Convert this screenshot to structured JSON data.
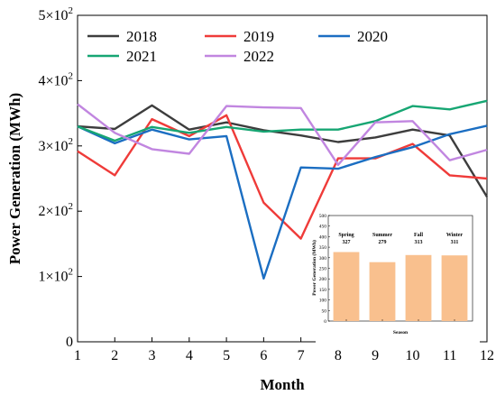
{
  "chart_data": [
    {
      "type": "line",
      "title": "",
      "xlabel": "Month",
      "ylabel": "Power Generation (MWh)",
      "x": [
        1,
        2,
        3,
        4,
        5,
        6,
        7,
        8,
        9,
        10,
        11,
        12
      ],
      "xticks": [
        "1",
        "2",
        "3",
        "4",
        "5",
        "6",
        "7",
        "8",
        "9",
        "10",
        "11",
        "12"
      ],
      "xlim": [
        1,
        12
      ],
      "ylim": [
        0,
        500
      ],
      "yticks": [
        {
          "value": 0,
          "label": "0",
          "exp": ""
        },
        {
          "value": 100,
          "label": "1×10",
          "exp": "2"
        },
        {
          "value": 200,
          "label": "2×10",
          "exp": "2"
        },
        {
          "value": 300,
          "label": "3×10",
          "exp": "2"
        },
        {
          "value": 400,
          "label": "4×10",
          "exp": "2"
        },
        {
          "value": 500,
          "label": "5×10",
          "exp": "2"
        }
      ],
      "legend_position": "top-left",
      "grid": false,
      "series": [
        {
          "name": "2018",
          "color": "#3d3d3d",
          "values": [
            330,
            326,
            362,
            325,
            336,
            324,
            316,
            306,
            313,
            325,
            316,
            222
          ]
        },
        {
          "name": "2019",
          "color": "#ef3b39",
          "values": [
            292,
            255,
            341,
            315,
            347,
            213,
            158,
            281,
            281,
            303,
            255,
            250
          ]
        },
        {
          "name": "2020",
          "color": "#1b6ec2",
          "values": [
            330,
            304,
            325,
            310,
            315,
            97,
            267,
            265,
            283,
            298,
            318,
            331
          ]
        },
        {
          "name": "2021",
          "color": "#17a673",
          "values": [
            330,
            308,
            329,
            320,
            329,
            322,
            325,
            325,
            338,
            361,
            356,
            369
          ]
        },
        {
          "name": "2022",
          "color": "#c186e0",
          "values": [
            364,
            320,
            295,
            288,
            361,
            359,
            358,
            271,
            336,
            338,
            278,
            294
          ]
        }
      ]
    },
    {
      "type": "bar",
      "title": "",
      "xlabel": "Season",
      "ylabel": "Power Generation (MWh)",
      "categories": [
        "Spring",
        "Summer",
        "Fall",
        "Winter"
      ],
      "values": [
        327,
        279,
        313,
        311
      ],
      "value_labels": [
        "327",
        "279",
        "313",
        "311"
      ],
      "ylim": [
        0,
        500
      ],
      "yticks": [
        "0",
        "50",
        "100",
        "150",
        "200",
        "250",
        "300",
        "350",
        "400",
        "450",
        "500"
      ],
      "bar_color": "#f9c08e",
      "bar_edge_color": "#3a3a3a"
    }
  ]
}
